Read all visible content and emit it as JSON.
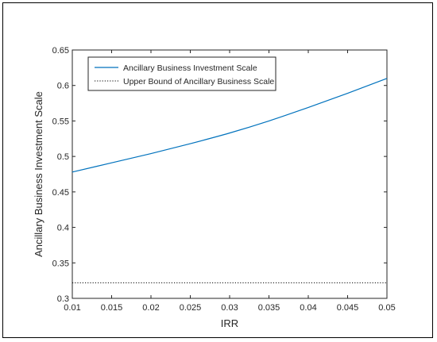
{
  "chart_data": {
    "type": "line",
    "title": "",
    "xlabel": "IRR",
    "ylabel": "Ancillary Business Investment Scale",
    "xlim": [
      0.01,
      0.05
    ],
    "ylim": [
      0.3,
      0.65
    ],
    "xticks": [
      "0.01",
      "0.015",
      "0.02",
      "0.025",
      "0.03",
      "0.035",
      "0.04",
      "0.045",
      "0.05"
    ],
    "yticks": [
      "0.3",
      "0.35",
      "0.4",
      "0.45",
      "0.5",
      "0.55",
      "0.6",
      "0.65"
    ],
    "grid": false,
    "legend_position": "top-left",
    "series": [
      {
        "name": "Ancillary Business Investment Scale",
        "style": "solid",
        "color": "#0072BD",
        "x": [
          0.01,
          0.015,
          0.02,
          0.025,
          0.03,
          0.035,
          0.04,
          0.045,
          0.05
        ],
        "y": [
          0.478,
          0.491,
          0.504,
          0.518,
          0.533,
          0.55,
          0.569,
          0.589,
          0.61
        ]
      },
      {
        "name": "Upper Bound of Ancillary Business Scale",
        "style": "dotted",
        "color": "#000000",
        "x": [
          0.01,
          0.05
        ],
        "y": [
          0.322,
          0.322
        ]
      }
    ]
  }
}
